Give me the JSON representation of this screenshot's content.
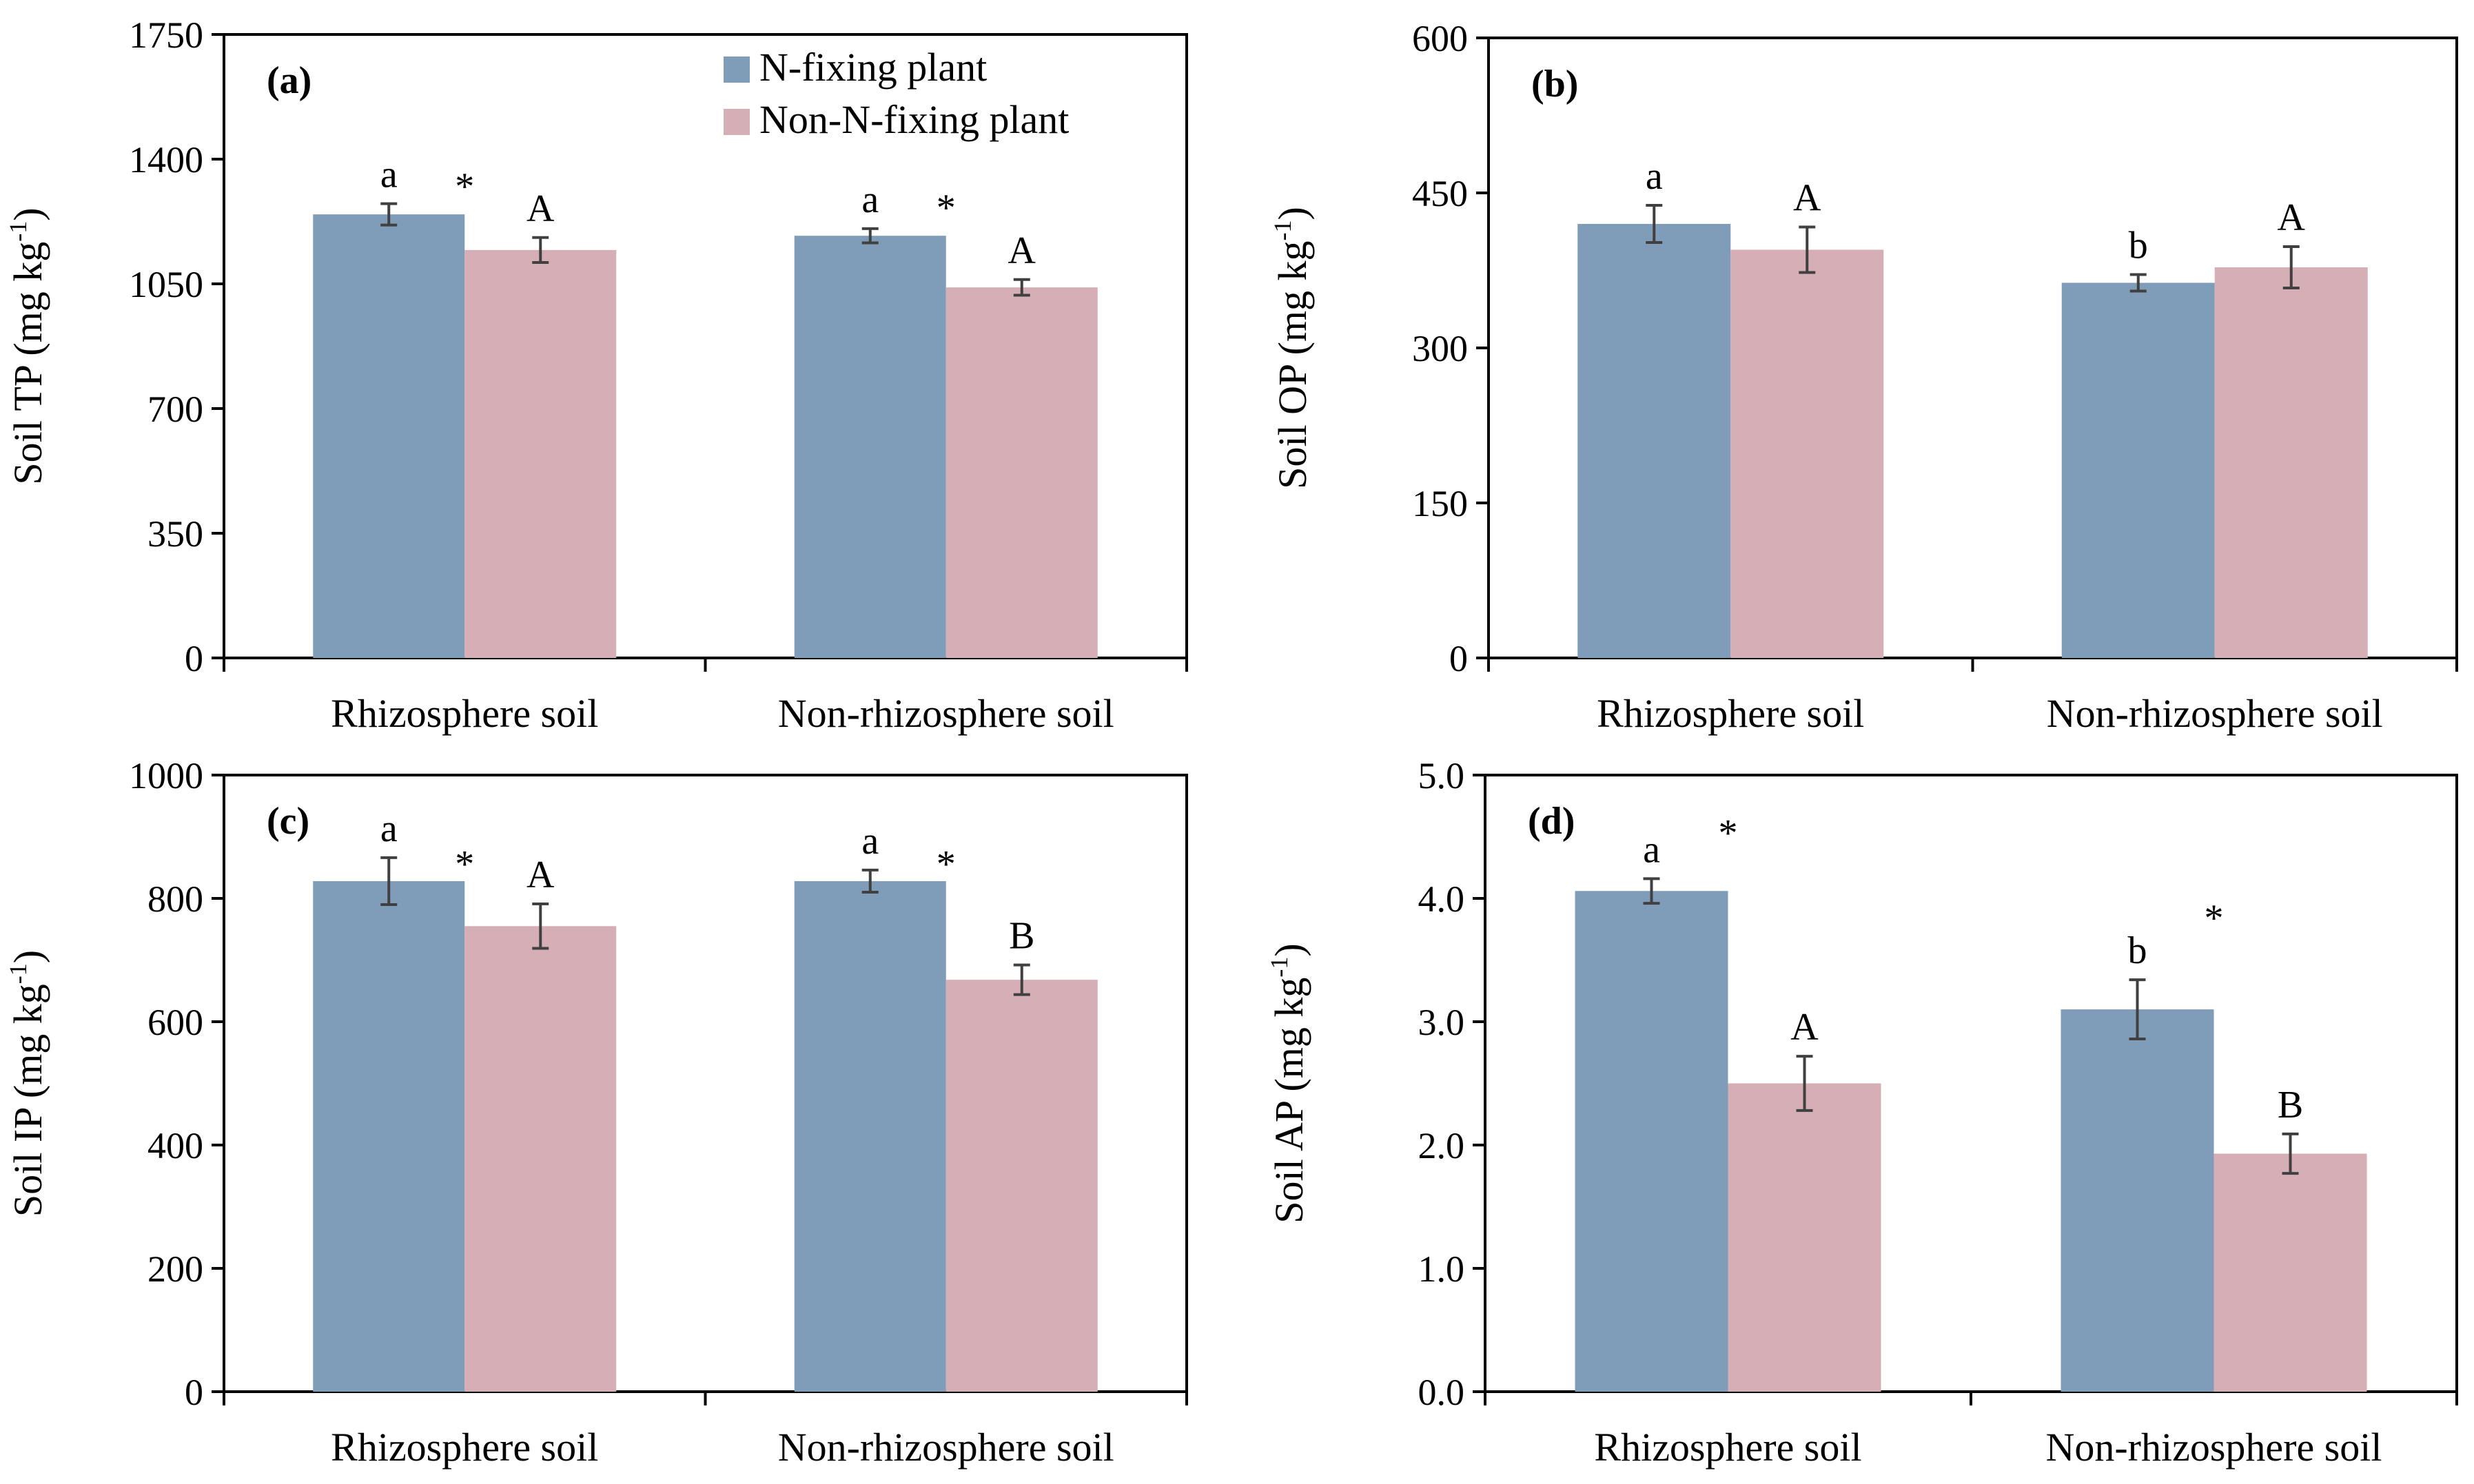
{
  "colors": {
    "n_fixing": "#7f9db9",
    "non_n_fixing": "#d6aeb6",
    "axis": "#000000",
    "error_bar": "#404040"
  },
  "legend": [
    {
      "label": "N-fixing plant",
      "color_key": "n_fixing"
    },
    {
      "label": "Non-N-fixing plant",
      "color_key": "non_n_fixing"
    }
  ],
  "chart_data": [
    {
      "type": "bar",
      "panel": "(a)",
      "ylabel": "Soil TP (mg kg",
      "ylabel_sup": "-1",
      "ylabel_close": ")",
      "ylim": [
        0,
        1750
      ],
      "yticks": [
        0,
        350,
        700,
        1050,
        1400,
        1750
      ],
      "tick_decimals": 0,
      "categories": [
        "Rhizosphere soil",
        "Non-rhizosphere soil"
      ],
      "series": [
        {
          "name": "N-fixing plant",
          "values": [
            1245,
            1185
          ],
          "errors": [
            30,
            20
          ],
          "letters": [
            "a",
            "a"
          ]
        },
        {
          "name": "Non-N-fixing plant",
          "values": [
            1145,
            1040
          ],
          "errors": [
            35,
            22
          ],
          "letters": [
            "A",
            "A"
          ]
        }
      ],
      "stars": [
        "*",
        "*"
      ],
      "star_values": [
        1365,
        1305
      ]
    },
    {
      "type": "bar",
      "panel": "(b)",
      "ylabel": "Soil OP (mg kg",
      "ylabel_sup": "-1",
      "ylabel_close": ")",
      "ylim": [
        0,
        600
      ],
      "yticks": [
        0,
        150,
        300,
        450,
        600
      ],
      "tick_decimals": 0,
      "categories": [
        "Rhizosphere soil",
        "Non-rhizosphere soil"
      ],
      "series": [
        {
          "name": "N-fixing plant",
          "values": [
            420,
            363
          ],
          "errors": [
            18,
            8
          ],
          "letters": [
            "a",
            "b"
          ]
        },
        {
          "name": "Non-N-fixing plant",
          "values": [
            395,
            378
          ],
          "errors": [
            22,
            20
          ],
          "letters": [
            "A",
            "A"
          ]
        }
      ],
      "stars": [
        "",
        ""
      ],
      "star_values": [
        0,
        0
      ]
    },
    {
      "type": "bar",
      "panel": "(c)",
      "ylabel": "Soil IP (mg kg",
      "ylabel_sup": "-1",
      "ylabel_close": ")",
      "ylim": [
        0,
        1000
      ],
      "yticks": [
        0,
        200,
        400,
        600,
        800,
        1000
      ],
      "tick_decimals": 0,
      "categories": [
        "Rhizosphere soil",
        "Non-rhizosphere soil"
      ],
      "series": [
        {
          "name": "N-fixing plant",
          "values": [
            828,
            828
          ],
          "errors": [
            38,
            18
          ],
          "letters": [
            "a",
            "a"
          ]
        },
        {
          "name": "Non-N-fixing plant",
          "values": [
            755,
            668
          ],
          "errors": [
            36,
            24
          ],
          "letters": [
            "A",
            "B"
          ]
        }
      ],
      "stars": [
        "*",
        "*"
      ],
      "star_values": [
        880,
        880
      ]
    },
    {
      "type": "bar",
      "panel": "(d)",
      "ylabel": "Soil AP (mg kg",
      "ylabel_sup": "-1",
      "ylabel_close": ")",
      "ylim": [
        0,
        5
      ],
      "yticks": [
        0,
        1,
        2,
        3,
        4,
        5
      ],
      "tick_decimals": 1,
      "categories": [
        "Rhizosphere soil",
        "Non-rhizosphere soil"
      ],
      "series": [
        {
          "name": "N-fixing plant",
          "values": [
            4.06,
            3.1
          ],
          "errors": [
            0.1,
            0.24
          ],
          "letters": [
            "a",
            "b"
          ]
        },
        {
          "name": "Non-N-fixing plant",
          "values": [
            2.5,
            1.93
          ],
          "errors": [
            0.22,
            0.16
          ],
          "letters": [
            "A",
            "B"
          ]
        }
      ],
      "stars": [
        "*",
        "*"
      ],
      "star_values": [
        4.65,
        3.96
      ]
    }
  ]
}
